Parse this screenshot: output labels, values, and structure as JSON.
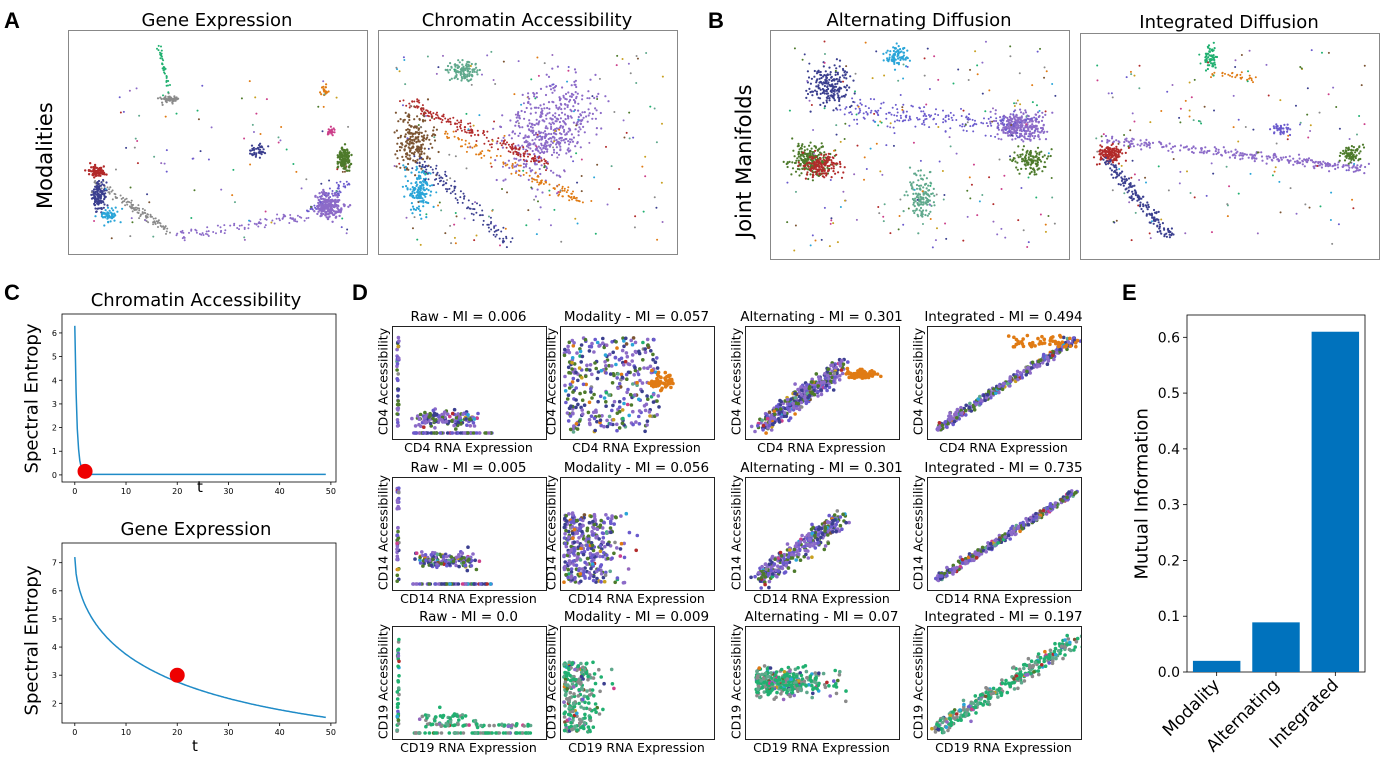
{
  "palette": [
    "#3b3f8f",
    "#6a5acd",
    "#8c6bc8",
    "#4d7a2b",
    "#b22a2a",
    "#e07b14",
    "#20b070",
    "#2aa5d8",
    "#8a8a8a",
    "#c8a020",
    "#cc3f8a",
    "#7b5432",
    "#5fa88c",
    "#9467bd"
  ],
  "panel_letters": {
    "A": "A",
    "B": "B",
    "C": "C",
    "D": "D",
    "E": "E"
  },
  "row_labels": {
    "modalities": "Modalities",
    "joint": "Joint Manifolds"
  },
  "manifolds": [
    {
      "title": "Gene Expression"
    },
    {
      "title": "Chromatin Accessibility"
    },
    {
      "title": "Alternating Diffusion"
    },
    {
      "title": "Integrated Diffusion"
    }
  ],
  "entropy_panels": [
    {
      "title": "Chromatin Accessibility",
      "xlabel": "t",
      "ylabel": "Spectral Entropy",
      "x_ticks": [
        0,
        10,
        20,
        30,
        40,
        50
      ],
      "y_ticks": [
        0,
        1,
        2,
        3,
        4,
        5,
        6
      ],
      "ylim": [
        -0.3,
        6.8
      ],
      "xlim": [
        -2.5,
        51
      ],
      "curve": {
        "start": 6.3,
        "floor": 0.02,
        "decay": 1.1,
        "tmax": 49
      },
      "marker": {
        "t": 2,
        "value": 0.15
      }
    },
    {
      "title": "Gene Expression",
      "xlabel": "t",
      "ylabel": "Spectral Entropy",
      "x_ticks": [
        0,
        10,
        20,
        30,
        40,
        50
      ],
      "y_ticks": [
        2,
        3,
        4,
        5,
        6,
        7
      ],
      "ylim": [
        1.3,
        7.7
      ],
      "xlim": [
        -2.5,
        51
      ],
      "curve": {
        "start": 7.2,
        "end": 1.5,
        "tmax": 49
      },
      "marker": {
        "t": 20,
        "value": 3.0
      }
    }
  ],
  "mi_grid": [
    {
      "title": "Raw - MI = 0.006",
      "xlabel": "CD4 RNA Expression",
      "ylabel": "CD4 Accessibility"
    },
    {
      "title": "Modality - MI = 0.057",
      "xlabel": "CD4 RNA Expression",
      "ylabel": "CD4 Accessibility"
    },
    {
      "title": "Alternating - MI = 0.301",
      "xlabel": "CD4 RNA Expression",
      "ylabel": "CD4 Accessibility"
    },
    {
      "title": "Integrated - MI = 0.494",
      "xlabel": "CD4 RNA Expression",
      "ylabel": "CD4 Accessibility"
    },
    {
      "title": "Raw - MI = 0.005",
      "xlabel": "CD14 RNA Expression",
      "ylabel": "CD14 Accessibility"
    },
    {
      "title": "Modality - MI = 0.056",
      "xlabel": "CD14 RNA Expression",
      "ylabel": "CD14 Accessibility"
    },
    {
      "title": "Alternating - MI = 0.301",
      "xlabel": "CD14 RNA Expression",
      "ylabel": "CD14 Accessibility"
    },
    {
      "title": "Integrated - MI = 0.735",
      "xlabel": "CD14 RNA Expression",
      "ylabel": "CD14 Accessibility"
    },
    {
      "title": "Raw - MI = 0.0",
      "xlabel": "CD19 RNA Expression",
      "ylabel": "CD19 Accessibility"
    },
    {
      "title": "Modality - MI = 0.009",
      "xlabel": "CD19 RNA Expression",
      "ylabel": "CD19 Accessibility"
    },
    {
      "title": "Alternating - MI = 0.07",
      "xlabel": "CD19 RNA Expression",
      "ylabel": "CD19 Accessibility"
    },
    {
      "title": "Integrated - MI = 0.197",
      "xlabel": "CD19 RNA Expression",
      "ylabel": "CD19 Accessibility"
    }
  ],
  "chart_data": {
    "type": "bar",
    "categories": [
      "Modality",
      "Alternating",
      "Integrated"
    ],
    "values": [
      0.02,
      0.089,
      0.61
    ],
    "title": "",
    "xlabel": "",
    "ylabel": "Mutual Information",
    "ylim": [
      0,
      0.64
    ],
    "y_ticks": [
      0.0,
      0.1,
      0.2,
      0.3,
      0.4,
      0.5,
      0.6
    ],
    "y_tick_labels": [
      "0.0",
      "0.1",
      "0.2",
      "0.3",
      "0.4",
      "0.5",
      "0.6"
    ],
    "bar_color": "#0072bd"
  }
}
